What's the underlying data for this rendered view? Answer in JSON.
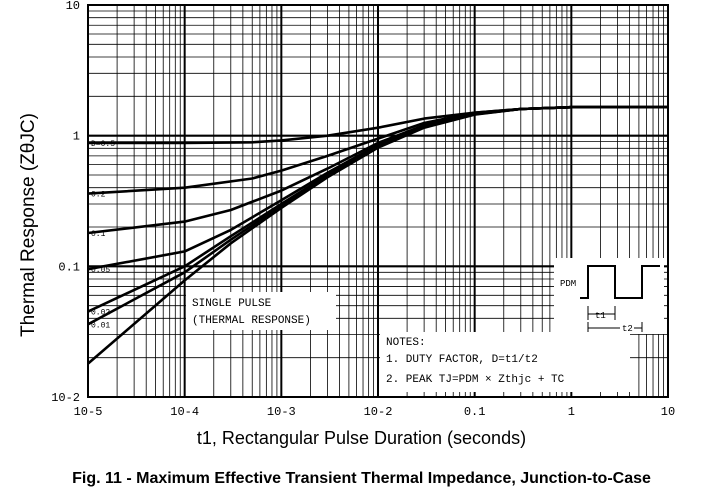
{
  "chart_data": {
    "type": "line",
    "title": "Fig. 11 - Maximum Effective Transient Thermal Impedance, Junction-to-Case",
    "xlabel": "t1, Rectangular Pulse Duration (seconds)",
    "ylabel": "Thermal Response (ZθJC)",
    "x_scale": "log",
    "y_scale": "log",
    "xlim": [
      1e-05,
      10
    ],
    "ylim": [
      0.01,
      10
    ],
    "grid": true,
    "x_tick_labels": [
      "10-5",
      "10-4",
      "10-3",
      "10-2",
      "0.1",
      "1",
      "10"
    ],
    "y_tick_labels": [
      "10-2",
      "0.1",
      "1",
      "10"
    ],
    "series": [
      {
        "name": "D = 0.50",
        "x": [
          1e-05,
          0.0001,
          0.0005,
          0.001,
          0.003,
          0.01,
          0.03,
          0.1,
          0.3,
          1,
          10
        ],
        "y": [
          0.88,
          0.88,
          0.89,
          0.92,
          1.0,
          1.15,
          1.35,
          1.5,
          1.6,
          1.65,
          1.65
        ]
      },
      {
        "name": "D = 0.20",
        "x": [
          1e-05,
          0.0001,
          0.0005,
          0.001,
          0.003,
          0.01,
          0.03,
          0.1,
          0.3,
          1,
          10
        ],
        "y": [
          0.36,
          0.4,
          0.47,
          0.54,
          0.7,
          0.95,
          1.25,
          1.5,
          1.6,
          1.65,
          1.65
        ]
      },
      {
        "name": "D = 0.10",
        "x": [
          1e-05,
          0.0001,
          0.0003,
          0.001,
          0.003,
          0.01,
          0.03,
          0.1,
          0.3,
          1,
          10
        ],
        "y": [
          0.18,
          0.22,
          0.27,
          0.38,
          0.56,
          0.88,
          1.2,
          1.48,
          1.6,
          1.65,
          1.65
        ]
      },
      {
        "name": "D = 0.05",
        "x": [
          1e-05,
          0.0001,
          0.0003,
          0.001,
          0.003,
          0.01,
          0.03,
          0.1,
          0.3,
          1,
          10
        ],
        "y": [
          0.095,
          0.13,
          0.19,
          0.32,
          0.52,
          0.85,
          1.18,
          1.47,
          1.6,
          1.65,
          1.65
        ]
      },
      {
        "name": "D = 0.02",
        "x": [
          1e-05,
          0.0001,
          0.0003,
          0.001,
          0.003,
          0.01,
          0.03,
          0.1,
          0.3,
          1,
          10
        ],
        "y": [
          0.045,
          0.1,
          0.17,
          0.3,
          0.5,
          0.83,
          1.17,
          1.46,
          1.6,
          1.65,
          1.65
        ]
      },
      {
        "name": "D = 0.01",
        "x": [
          1e-05,
          0.0001,
          0.0003,
          0.001,
          0.003,
          0.01,
          0.03,
          0.1,
          0.3,
          1,
          10
        ],
        "y": [
          0.036,
          0.09,
          0.16,
          0.29,
          0.49,
          0.82,
          1.16,
          1.46,
          1.6,
          1.65,
          1.65
        ]
      },
      {
        "name": "SINGLE PULSE",
        "x": [
          1e-05,
          0.0001,
          0.0003,
          0.001,
          0.003,
          0.01,
          0.03,
          0.1,
          0.3,
          1,
          10
        ],
        "y": [
          0.018,
          0.078,
          0.15,
          0.28,
          0.48,
          0.81,
          1.15,
          1.45,
          1.6,
          1.65,
          1.65
        ]
      }
    ],
    "curve_labels": [
      "D=0.5",
      "0.2",
      "0.1",
      "0.05",
      "0.02",
      "0.01"
    ],
    "annotations": {
      "single_pulse": [
        "SINGLE PULSE",
        "(THERMAL RESPONSE)"
      ],
      "notes": [
        "NOTES:",
        "1. DUTY FACTOR, D=t1/t2",
        "2. PEAK TJ=PDM × Zthjc + TC"
      ],
      "inset_pdm": "PDM",
      "inset_t1": "t1",
      "inset_t2": "t2"
    }
  }
}
